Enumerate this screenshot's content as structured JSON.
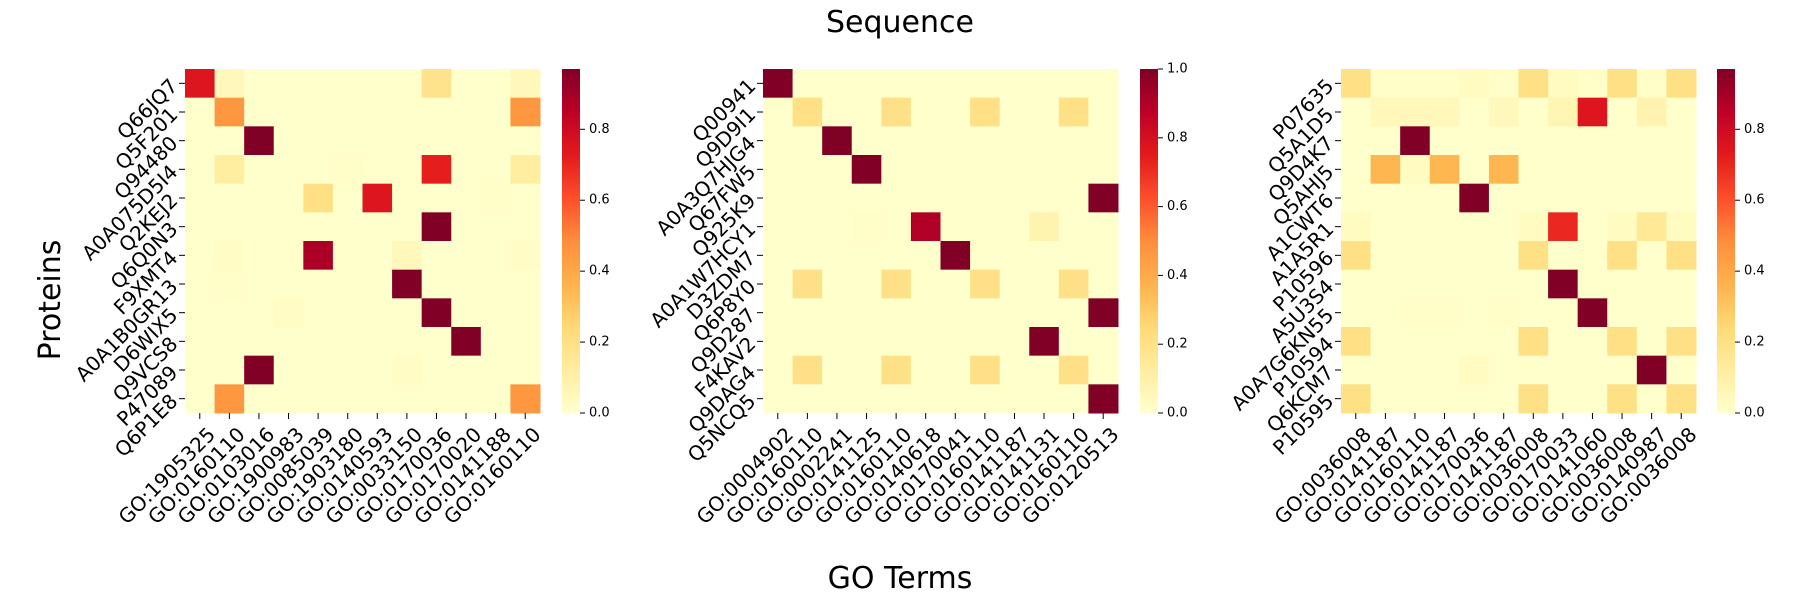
{
  "chart_data": {
    "type": "heatmap",
    "title": "Sequence",
    "xlabel": "GO Terms",
    "ylabel": "Proteins",
    "colormap": "YlOrRd",
    "colormap_stops": [
      "#ffffcc",
      "#ffeda0",
      "#fed976",
      "#feb24c",
      "#fd8d3c",
      "#fc4e2a",
      "#e31a1c",
      "#bd0026",
      "#800026"
    ],
    "panels": [
      {
        "rows": [
          "Q66JQ7",
          "Q5F201",
          "Q94480",
          "A0A075D5I4",
          "Q2KEJ2",
          "Q6Q0N3",
          "F9XMT4",
          "A0A1B0GR13",
          "D6WIX5",
          "Q9VCS8",
          "P47089",
          "Q6P1E8"
        ],
        "cols": [
          "GO:1905325",
          "GO:0160110",
          "GO:0103016",
          "GO:1900983",
          "GO:0085039",
          "GO:1903180",
          "GO:0140593",
          "GO:0033150",
          "GO:0170036",
          "GO:0170020",
          "GO:0141188",
          "GO:0160110"
        ],
        "vmin": 0,
        "vmax": 0.97,
        "colorbar_ticks": [
          "0.0",
          "0.2",
          "0.4",
          "0.6",
          "0.8"
        ],
        "values": [
          [
            0.75,
            0.05,
            0,
            0,
            0,
            0,
            0,
            0,
            0.18,
            0,
            0,
            0.05
          ],
          [
            0,
            0.45,
            0,
            0,
            0,
            0,
            0,
            0,
            0,
            0,
            0,
            0.45
          ],
          [
            0,
            0,
            0.97,
            0,
            0,
            0,
            0,
            0,
            0,
            0,
            0,
            0
          ],
          [
            0,
            0.12,
            0,
            0,
            0,
            0.01,
            0,
            0,
            0.72,
            0,
            0,
            0.12
          ],
          [
            0,
            0,
            0,
            0,
            0.2,
            0,
            0.75,
            0,
            0,
            0,
            0.01,
            0
          ],
          [
            0,
            0,
            0,
            0,
            0,
            0,
            0,
            0,
            0.97,
            0,
            0,
            0
          ],
          [
            0,
            0.02,
            0,
            0,
            0.88,
            0,
            0,
            0.05,
            0,
            0,
            0,
            0.02
          ],
          [
            0,
            0.01,
            0,
            0,
            0,
            0,
            0,
            0.97,
            0,
            0,
            0,
            0
          ],
          [
            0,
            0,
            0,
            0.02,
            0,
            0,
            0,
            0,
            0.97,
            0,
            0,
            0
          ],
          [
            0,
            0,
            0,
            0,
            0,
            0,
            0,
            0,
            0,
            0.97,
            0,
            0
          ],
          [
            0,
            0,
            0.97,
            0,
            0,
            0,
            0,
            0.02,
            0,
            0,
            0,
            0
          ],
          [
            0,
            0.45,
            0,
            0,
            0,
            0,
            0,
            0,
            0,
            0,
            0,
            0.45
          ]
        ]
      },
      {
        "rows": [
          "Q00941",
          "Q9D9I1",
          "A0A3Q7HJG4",
          "Q67FW5",
          "Q925K9",
          "A0A1W7HCY1",
          "D3ZDM7",
          "Q6P8Y0",
          "Q9D287",
          "F4KAV2",
          "Q9DAG4",
          "Q5NCQ5"
        ],
        "cols": [
          "GO:0004902",
          "GO:0160110",
          "GO:0002241",
          "GO:0141125",
          "GO:0160110",
          "GO:0140618",
          "GO:0170041",
          "GO:0160110",
          "GO:0141187",
          "GO:0141131",
          "GO:0160110",
          "GO:0120513"
        ],
        "vmin": 0,
        "vmax": 1.0,
        "colorbar_ticks": [
          "0.0",
          "0.2",
          "0.4",
          "0.6",
          "0.8",
          "1.0"
        ],
        "values": [
          [
            1,
            0,
            0,
            0,
            0,
            0,
            0,
            0,
            0,
            0,
            0,
            0
          ],
          [
            0,
            0.2,
            0,
            0,
            0.2,
            0,
            0,
            0.2,
            0,
            0,
            0.2,
            0
          ],
          [
            0,
            0,
            1,
            0,
            0,
            0,
            0,
            0,
            0,
            0,
            0,
            0
          ],
          [
            0,
            0,
            0,
            1,
            0,
            0,
            0,
            0,
            0,
            0,
            0,
            0
          ],
          [
            0,
            0,
            0,
            0,
            0,
            0,
            0,
            0,
            0,
            0,
            0,
            1
          ],
          [
            0,
            0,
            0,
            0.01,
            0,
            0.9,
            0,
            0,
            0,
            0.08,
            0,
            0
          ],
          [
            0,
            0,
            0,
            0,
            0,
            0,
            1,
            0,
            0,
            0,
            0,
            0
          ],
          [
            0,
            0.2,
            0,
            0,
            0.2,
            0,
            0,
            0.2,
            0,
            0,
            0.2,
            0
          ],
          [
            0,
            0,
            0,
            0,
            0,
            0,
            0,
            0,
            0,
            0,
            0,
            1
          ],
          [
            0,
            0,
            0,
            0,
            0,
            0,
            0,
            0,
            0,
            1,
            0,
            0
          ],
          [
            0,
            0.2,
            0,
            0,
            0.2,
            0,
            0,
            0.2,
            0,
            0,
            0.2,
            0
          ],
          [
            0,
            0,
            0,
            0,
            0,
            0,
            0,
            0,
            0,
            0,
            0,
            1
          ]
        ]
      },
      {
        "rows": [
          "P07635",
          "Q5A1D5",
          "Q9D4K7",
          "Q5AHJ5",
          "A1CWT6",
          "A1A5R1",
          "P10596",
          "A5U3S4",
          "A0A7G6KN55",
          "P10594",
          "Q6KCM7",
          "P10595"
        ],
        "cols": [
          "GO:0036008",
          "GO:0141187",
          "GO:0160110",
          "GO:0141187",
          "GO:0170036",
          "GO:0141187",
          "GO:0036008",
          "GO:0170033",
          "GO:0141060",
          "GO:0036008",
          "GO:0140987",
          "GO:0036008"
        ],
        "vmin": 0,
        "vmax": 0.97,
        "colorbar_ticks": [
          "0.0",
          "0.2",
          "0.4",
          "0.6",
          "0.8"
        ],
        "values": [
          [
            0.2,
            0.01,
            0.01,
            0.01,
            0.03,
            0.01,
            0.2,
            0.03,
            0.01,
            0.2,
            0.01,
            0.2
          ],
          [
            0,
            0.05,
            0.05,
            0.05,
            0,
            0.05,
            0,
            0.07,
            0.75,
            0,
            0.08,
            0
          ],
          [
            0,
            0,
            0.97,
            0,
            0,
            0,
            0,
            0,
            0,
            0,
            0,
            0
          ],
          [
            0,
            0.35,
            0.03,
            0.35,
            0,
            0.35,
            0,
            0,
            0,
            0,
            0,
            0
          ],
          [
            0,
            0,
            0,
            0,
            0.97,
            0,
            0,
            0,
            0,
            0,
            0,
            0
          ],
          [
            0.03,
            0,
            0,
            0,
            0,
            0,
            0.03,
            0.7,
            0,
            0.03,
            0.15,
            0.03
          ],
          [
            0.2,
            0,
            0,
            0,
            0,
            0,
            0.2,
            0,
            0,
            0.2,
            0,
            0.2
          ],
          [
            0,
            0,
            0,
            0,
            0,
            0,
            0,
            0.97,
            0,
            0,
            0,
            0
          ],
          [
            0,
            0,
            0.01,
            0.01,
            0,
            0.01,
            0,
            0,
            0.97,
            0,
            0,
            0
          ],
          [
            0.2,
            0,
            0,
            0,
            0,
            0,
            0.2,
            0,
            0,
            0.2,
            0,
            0.2
          ],
          [
            0,
            0,
            0,
            0,
            0.03,
            0,
            0,
            0,
            0,
            0,
            0.97,
            0
          ],
          [
            0.2,
            0,
            0,
            0,
            0,
            0,
            0.2,
            0,
            0,
            0.2,
            0,
            0.2
          ]
        ]
      }
    ]
  }
}
